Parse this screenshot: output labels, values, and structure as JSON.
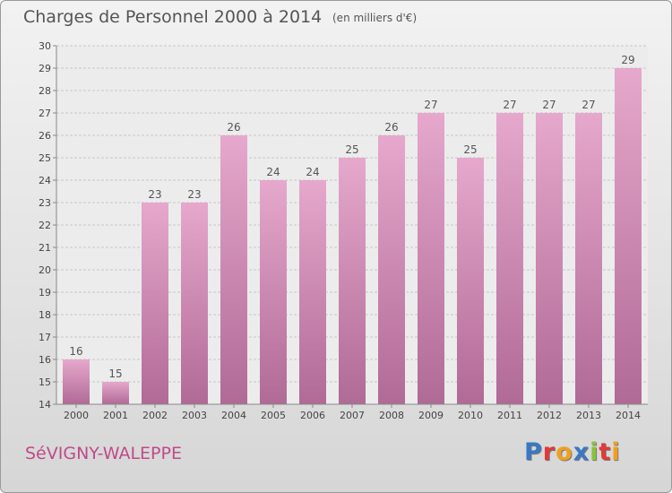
{
  "header": {
    "title": "Charges de Personnel 2000 à 2014",
    "subtitle": "(en milliers d'€)"
  },
  "footer": {
    "commune": "SéVIGNY-WALEPPE",
    "logo_text": "Proxiti",
    "logo_colors": [
      "#3a78c4",
      "#e03a3a",
      "#f0a020",
      "#3a78c4",
      "#8ac23a",
      "#e03a3a",
      "#f0a020"
    ]
  },
  "chart_data": {
    "type": "bar",
    "categories": [
      "2000",
      "2001",
      "2002",
      "2003",
      "2004",
      "2005",
      "2006",
      "2007",
      "2008",
      "2009",
      "2010",
      "2011",
      "2012",
      "2013",
      "2014"
    ],
    "values": [
      16,
      15,
      23,
      23,
      26,
      24,
      24,
      25,
      26,
      27,
      25,
      27,
      27,
      27,
      29
    ],
    "ylim": [
      14,
      30
    ],
    "yticks": [
      14,
      15,
      16,
      17,
      18,
      19,
      20,
      21,
      22,
      23,
      24,
      25,
      26,
      27,
      28,
      29,
      30
    ],
    "grid": true,
    "bar_color_top": "#e6a8cc",
    "bar_color_bottom": "#b06a96",
    "data_labels": true
  }
}
